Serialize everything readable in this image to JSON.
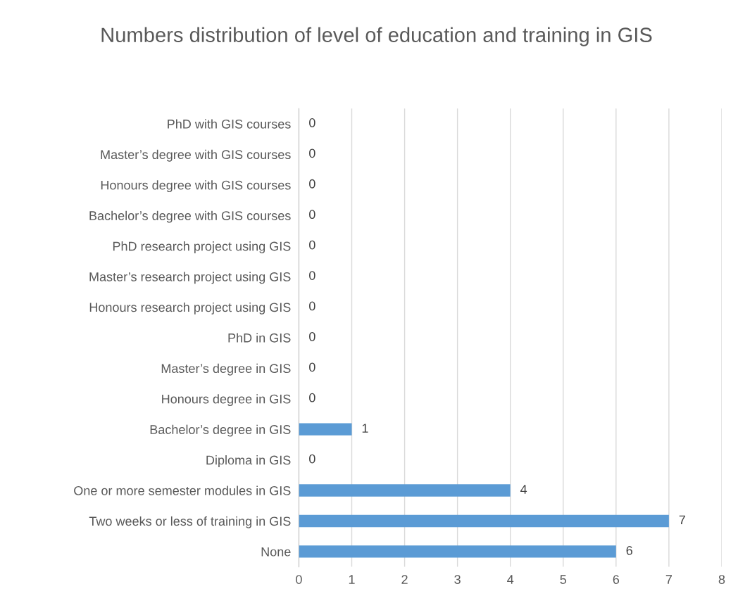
{
  "chart_data": {
    "type": "bar",
    "orientation": "horizontal",
    "title": "Numbers distribution of level of education and training in GIS",
    "categories": [
      "PhD with GIS courses",
      "Master’s degree with GIS courses",
      "Honours degree with GIS courses",
      "Bachelor’s degree with GIS courses",
      "PhD research project using GIS",
      "Master’s research project using GIS",
      "Honours research project using GIS",
      "PhD in GIS",
      "Master’s degree in GIS",
      "Honours degree in GIS",
      "Bachelor’s degree in GIS",
      "Diploma in GIS",
      "One or more semester modules in GIS",
      "Two weeks or less of training in GIS",
      "None"
    ],
    "values": [
      0,
      0,
      0,
      0,
      0,
      0,
      0,
      0,
      0,
      0,
      1,
      0,
      4,
      7,
      6
    ],
    "color": "#5b9bd5",
    "xlim": [
      0,
      8
    ],
    "xticks": [
      0,
      1,
      2,
      3,
      4,
      5,
      6,
      7,
      8
    ],
    "grid": "x",
    "data_labels": true,
    "legend": false
  }
}
